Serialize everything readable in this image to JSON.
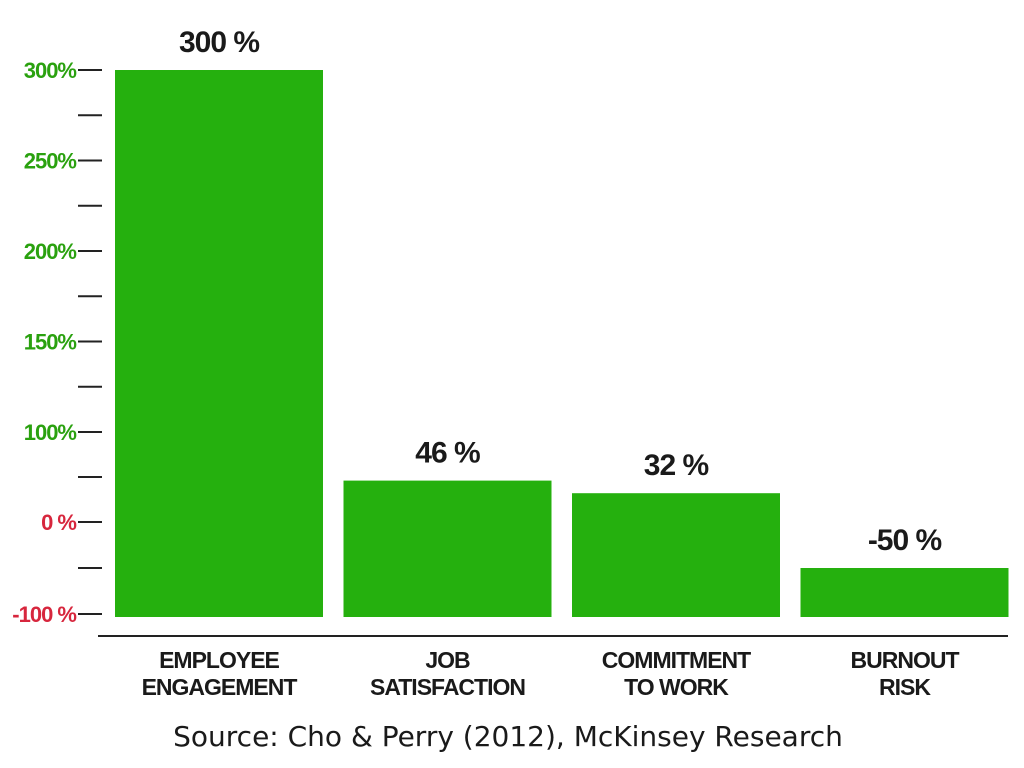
{
  "chart_data": {
    "type": "bar",
    "categories": [
      [
        "EMPLOYEE",
        "ENGAGEMENT"
      ],
      [
        "JOB",
        "SATISFACTION"
      ],
      [
        "COMMITMENT",
        "TO WORK"
      ],
      [
        "BURNOUT",
        "RISK"
      ]
    ],
    "values": [
      300,
      46,
      32,
      -50
    ],
    "value_labels": [
      "300 %",
      "46 %",
      "32 %",
      "-50 %"
    ],
    "y_ticks": [
      {
        "value": 300,
        "label": "300%",
        "color": "#2aa10f"
      },
      {
        "value": 250,
        "label": "250%",
        "color": "#2aa10f"
      },
      {
        "value": 200,
        "label": "200%",
        "color": "#2aa10f"
      },
      {
        "value": 150,
        "label": "150%",
        "color": "#2aa10f"
      },
      {
        "value": 100,
        "label": "100%",
        "color": "#2aa10f"
      },
      {
        "value": 0,
        "label": "0 %",
        "color": "#d7263d"
      },
      {
        "value": -100,
        "label": "-100 %",
        "color": "#d7263d"
      }
    ],
    "y_minor_ticks": [
      275,
      225,
      175,
      125,
      50,
      -50
    ],
    "bar_color": "#25b00e",
    "grid": false,
    "title": "",
    "xlabel": "",
    "ylabel": ""
  },
  "source": "Source: Cho & Perry (2012), McKinsey Research"
}
